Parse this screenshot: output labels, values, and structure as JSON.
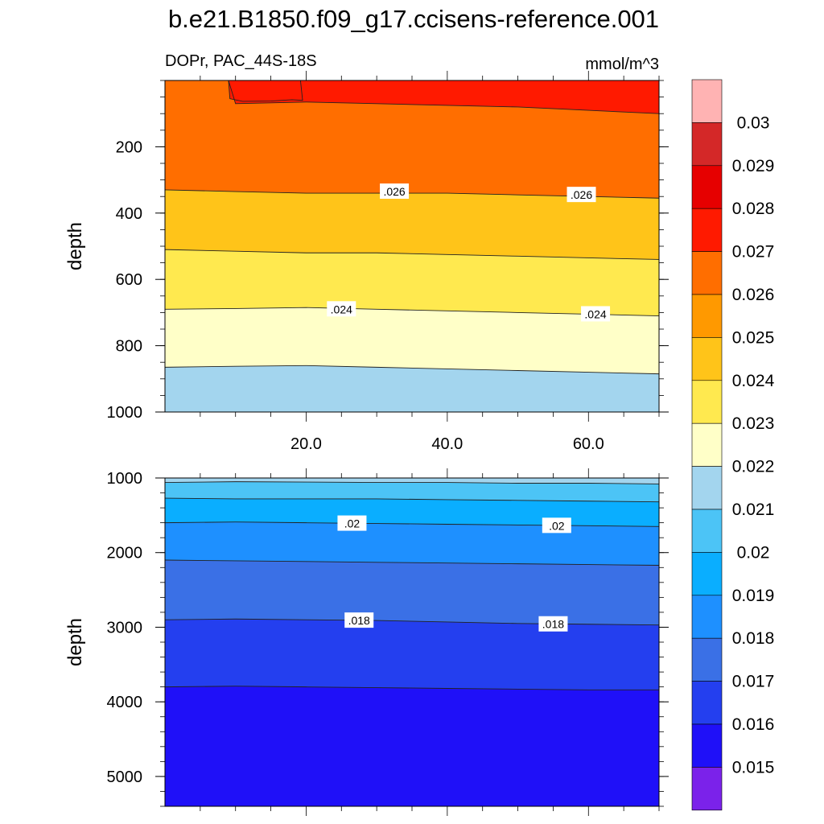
{
  "chart_data": {
    "type": "contour",
    "title": "b.e21.B1850.f09_g17.ccisens-reference.001",
    "variable_label": "DOPr, PAC_44S-18S",
    "units": "mmol/m^3",
    "xlim": [
      0,
      70
    ],
    "x_ticks": [
      "20.0",
      "40.0",
      "60.0"
    ],
    "upper_panel": {
      "ylabel": "depth",
      "ylim": [
        0,
        1000
      ],
      "y_ticks": [
        "200",
        "400",
        "600",
        "800",
        "1000"
      ],
      "contour_labels": [
        ".026",
        ".026",
        ".024",
        ".024"
      ],
      "boundaries": [
        {
          "level": 0.027,
          "x": [
            9,
            10,
            20,
            30,
            50,
            60,
            70
          ],
          "depth": [
            0,
            70,
            65,
            70,
            80,
            90,
            100
          ]
        },
        {
          "level": 0.026,
          "x": [
            0,
            10,
            20,
            30,
            40,
            50,
            60,
            70
          ],
          "depth": [
            330,
            335,
            340,
            340,
            340,
            345,
            350,
            355
          ]
        },
        {
          "level": 0.025,
          "x": [
            0,
            10,
            20,
            30,
            40,
            50,
            60,
            70
          ],
          "depth": [
            510,
            515,
            520,
            520,
            525,
            530,
            535,
            540
          ]
        },
        {
          "level": 0.024,
          "x": [
            0,
            10,
            20,
            30,
            40,
            50,
            60,
            70
          ],
          "depth": [
            690,
            688,
            685,
            690,
            695,
            700,
            705,
            710
          ]
        },
        {
          "level": 0.023,
          "x": [
            0,
            10,
            20,
            30,
            40,
            50,
            60,
            70
          ],
          "depth": [
            865,
            862,
            860,
            865,
            870,
            875,
            880,
            885
          ]
        }
      ]
    },
    "lower_panel": {
      "ylabel": "depth",
      "ylim": [
        1000,
        5400
      ],
      "y_ticks": [
        "1000",
        "2000",
        "3000",
        "4000",
        "5000"
      ],
      "contour_labels": [
        ".02",
        ".02",
        ".018",
        ".018"
      ],
      "boundaries": [
        {
          "level": 0.022,
          "x": [
            0,
            10,
            20,
            30,
            40,
            50,
            60,
            70
          ],
          "depth": [
            1060,
            1050,
            1055,
            1060,
            1060,
            1070,
            1070,
            1080
          ]
        },
        {
          "level": 0.021,
          "x": [
            0,
            10,
            20,
            30,
            40,
            50,
            60,
            70
          ],
          "depth": [
            1270,
            1280,
            1280,
            1280,
            1290,
            1300,
            1310,
            1320
          ]
        },
        {
          "level": 0.02,
          "x": [
            0,
            10,
            20,
            30,
            40,
            50,
            60,
            70
          ],
          "depth": [
            1600,
            1590,
            1600,
            1610,
            1620,
            1630,
            1640,
            1650
          ]
        },
        {
          "level": 0.019,
          "x": [
            0,
            10,
            20,
            30,
            40,
            50,
            60,
            70
          ],
          "depth": [
            2100,
            2110,
            2120,
            2130,
            2140,
            2150,
            2160,
            2170
          ]
        },
        {
          "level": 0.018,
          "x": [
            0,
            10,
            20,
            30,
            40,
            50,
            60,
            70
          ],
          "depth": [
            2900,
            2890,
            2900,
            2910,
            2930,
            2950,
            2960,
            2970
          ]
        },
        {
          "level": 0.017,
          "x": [
            0,
            10,
            20,
            30,
            40,
            50,
            60,
            70
          ],
          "depth": [
            3800,
            3790,
            3800,
            3810,
            3820,
            3830,
            3840,
            3840
          ]
        }
      ]
    },
    "colorbar": {
      "labels": [
        "0.03",
        "0.029",
        "0.028",
        "0.027",
        "0.026",
        "0.025",
        "0.024",
        "0.023",
        "0.022",
        "0.021",
        "0.02",
        "0.019",
        "0.018",
        "0.017",
        "0.016",
        "0.015"
      ],
      "colors_top_to_bottom": [
        "#FFB3B3",
        "#D42828",
        "#E60000",
        "#FF1A00",
        "#FF6E00",
        "#FF9900",
        "#FFC419",
        "#FFE94F",
        "#FFFFC8",
        "#A3D5EE",
        "#4CC4F6",
        "#0AAEFF",
        "#1E90FF",
        "#3A70E6",
        "#243FEF",
        "#1F10F8",
        "#7B22EA"
      ]
    }
  }
}
